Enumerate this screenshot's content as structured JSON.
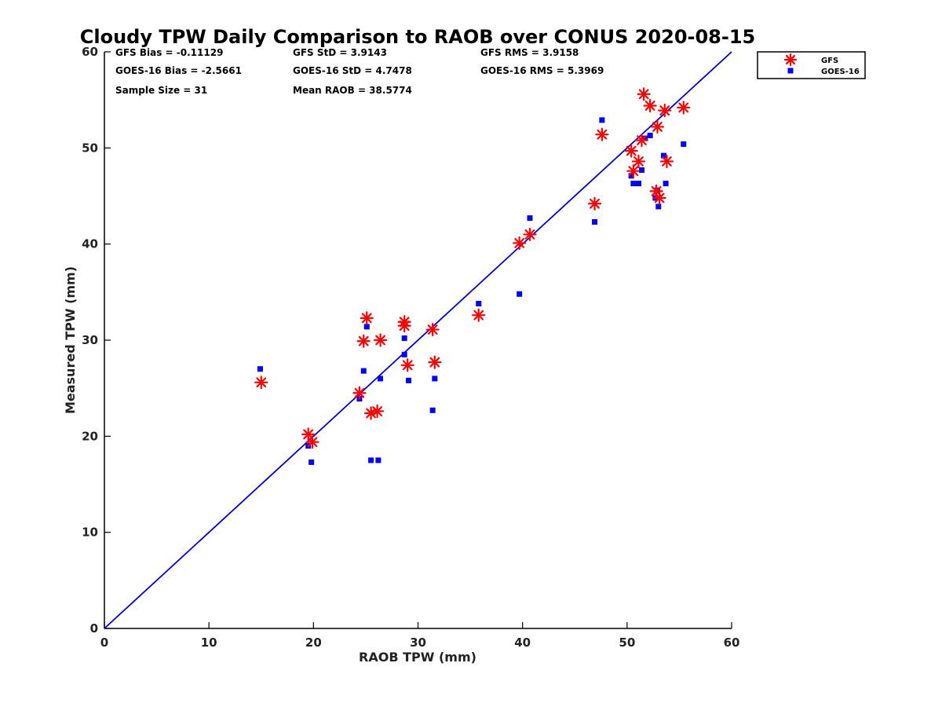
{
  "chart_data": {
    "type": "scatter",
    "title": "Cloudy TPW Daily Comparison to RAOB over CONUS 2020-08-15",
    "xlabel": "RAOB TPW (mm)",
    "ylabel": "Measured TPW (mm)",
    "xlim": [
      0,
      60
    ],
    "ylim": [
      0,
      60
    ],
    "x_ticks": [
      "0",
      "10",
      "20",
      "30",
      "40",
      "50",
      "60"
    ],
    "y_ticks": [
      "0",
      "10",
      "20",
      "30",
      "40",
      "50",
      "60"
    ],
    "grid": false,
    "legend_position": "top-right outside",
    "reference_line": {
      "x": [
        0,
        60
      ],
      "y": [
        0,
        60
      ],
      "color": "#0000dd"
    },
    "stats": [
      [
        "GFS Bias = -0.11129",
        "GFS StD = 3.9143",
        "GFS RMS = 3.9158"
      ],
      [
        "GOES-16 Bias = -2.5661",
        "GOES-16 StD = 4.7478",
        "GOES-16 RMS = 5.3969"
      ],
      [
        "Sample Size = 31",
        "Mean RAOB = 38.5774"
      ]
    ],
    "series": [
      {
        "name": "GFS",
        "marker": "asterisk",
        "color": "#ff0000",
        "points": [
          [
            15.0,
            25.6
          ],
          [
            19.5,
            20.2
          ],
          [
            19.9,
            19.4
          ],
          [
            24.4,
            24.5
          ],
          [
            24.8,
            29.9
          ],
          [
            25.1,
            32.3
          ],
          [
            25.5,
            22.4
          ],
          [
            26.1,
            22.6
          ],
          [
            26.4,
            30.0
          ],
          [
            28.7,
            31.9
          ],
          [
            28.7,
            31.5
          ],
          [
            29.0,
            27.4
          ],
          [
            31.4,
            31.1
          ],
          [
            31.6,
            27.7
          ],
          [
            35.8,
            32.6
          ],
          [
            39.7,
            40.1
          ],
          [
            40.7,
            41.0
          ],
          [
            46.9,
            44.2
          ],
          [
            47.6,
            51.4
          ],
          [
            50.4,
            49.7
          ],
          [
            50.6,
            47.6
          ],
          [
            51.1,
            48.6
          ],
          [
            51.4,
            50.8
          ],
          [
            51.6,
            55.6
          ],
          [
            52.2,
            54.4
          ],
          [
            52.8,
            45.5
          ],
          [
            52.9,
            52.2
          ],
          [
            53.1,
            44.8
          ],
          [
            53.6,
            53.9
          ],
          [
            53.8,
            48.6
          ],
          [
            55.4,
            54.2
          ]
        ]
      },
      {
        "name": "GOES-16",
        "marker": "square",
        "color": "#0000ff",
        "points": [
          [
            14.9,
            27.0
          ],
          [
            19.5,
            19.0
          ],
          [
            19.8,
            17.3
          ],
          [
            24.4,
            23.9
          ],
          [
            24.8,
            26.8
          ],
          [
            25.1,
            31.4
          ],
          [
            25.5,
            17.5
          ],
          [
            26.2,
            17.5
          ],
          [
            26.4,
            26.0
          ],
          [
            28.7,
            30.2
          ],
          [
            28.7,
            28.5
          ],
          [
            29.1,
            25.8
          ],
          [
            31.4,
            22.7
          ],
          [
            31.6,
            26.0
          ],
          [
            35.8,
            33.8
          ],
          [
            39.7,
            34.8
          ],
          [
            40.7,
            42.7
          ],
          [
            46.9,
            42.3
          ],
          [
            47.6,
            52.9
          ],
          [
            50.4,
            47.1
          ],
          [
            50.6,
            46.3
          ],
          [
            51.1,
            46.3
          ],
          [
            51.4,
            47.7
          ],
          [
            51.7,
            51.0
          ],
          [
            52.2,
            51.3
          ],
          [
            52.7,
            44.8
          ],
          [
            52.9,
            45.6
          ],
          [
            53.0,
            43.9
          ],
          [
            53.5,
            49.2
          ],
          [
            53.7,
            46.3
          ],
          [
            55.4,
            50.4
          ]
        ]
      }
    ]
  }
}
